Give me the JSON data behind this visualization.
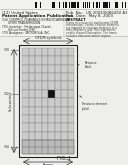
{
  "page_bg": "#f5f5f0",
  "barcode_color": "#000000",
  "grid_rows": 11,
  "grid_cols": 8,
  "pilot_row": 6,
  "pilot_col": 5,
  "pilot_color": "#111111",
  "cell_color": "#cccccc",
  "cell_edge": "#888888",
  "frame_color": "#222222",
  "header_bg": "#e8e8e4",
  "diagram_bg": "#f0f0ec"
}
